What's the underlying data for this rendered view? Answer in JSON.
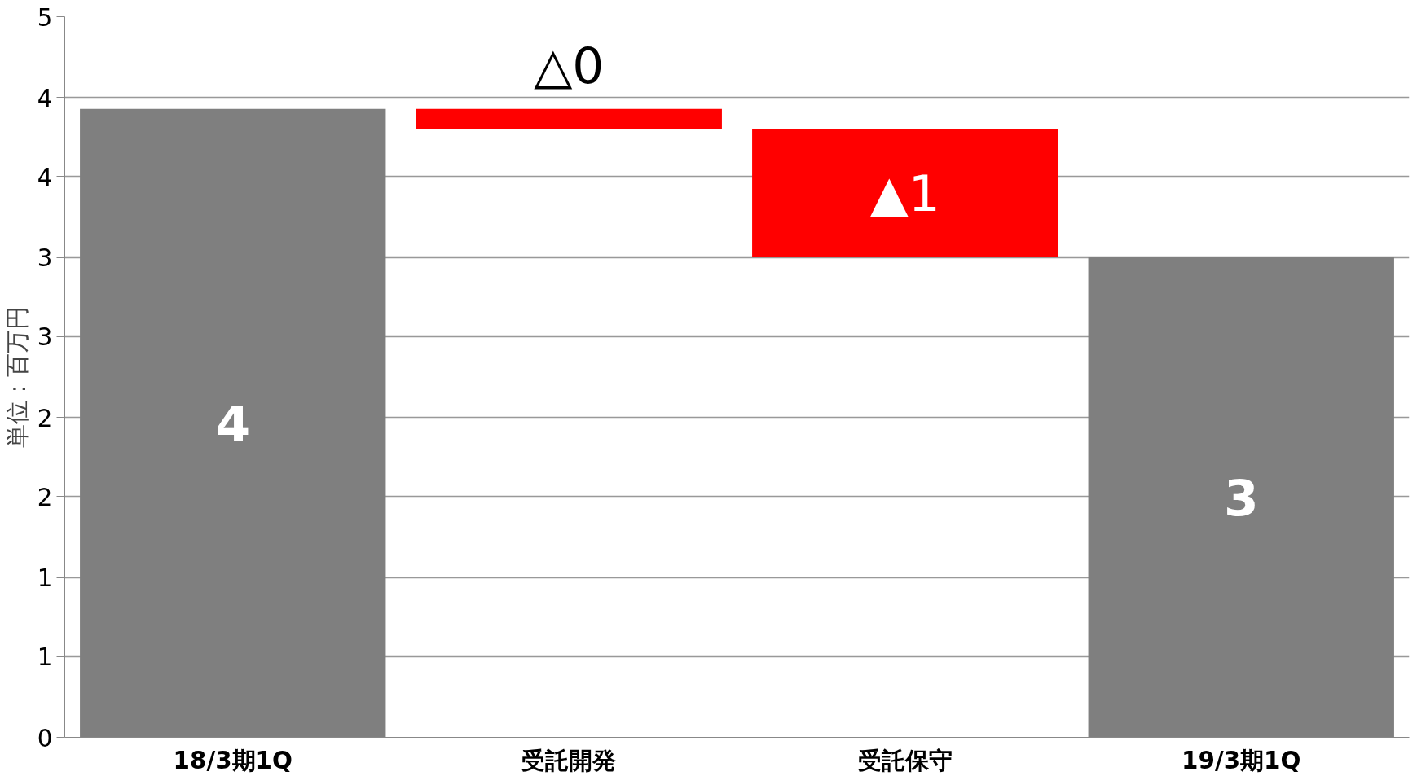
{
  "chart_data": {
    "type": "bar",
    "ylabel": "単位：百万円",
    "categories": [
      "18/3期1Q",
      "受託開発",
      "受託保守",
      "19/3期1Q"
    ],
    "base": [
      0,
      4.36,
      4.22,
      0
    ],
    "values": [
      4.36,
      -0.14,
      -0.89,
      3.33
    ],
    "colors": [
      "#7f7f7f",
      "#ff0000",
      "#ff0000",
      "#7f7f7f"
    ],
    "value_labels": [
      "4",
      "△0",
      "▲1",
      "3"
    ],
    "ylim": [
      0,
      5
    ],
    "yticks": [
      0,
      {
        "value": 0.56,
        "label": "1"
      },
      {
        "value": 1.11,
        "label": "1"
      },
      {
        "value": 1.67,
        "label": "2"
      },
      {
        "value": 2.22,
        "label": "2"
      },
      {
        "value": 2.78,
        "label": "3"
      },
      {
        "value": 3.33,
        "label": "3"
      },
      {
        "value": 3.89,
        "label": "4"
      },
      {
        "value": 4.44,
        "label": "4"
      },
      5
    ],
    "grid": "y"
  }
}
